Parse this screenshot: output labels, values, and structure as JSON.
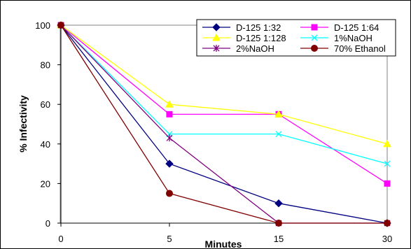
{
  "chart_data": {
    "type": "line",
    "title": "",
    "xlabel": "Minutes",
    "ylabel": "% Infectivity",
    "x": [
      0,
      5,
      15,
      30
    ],
    "x_ticks": [
      "0",
      "5",
      "15",
      "30"
    ],
    "y_ticks": [
      "0",
      "20",
      "40",
      "60",
      "80",
      "100"
    ],
    "ylim": [
      0,
      100
    ],
    "grid": false,
    "legend_position": "top-right",
    "series": [
      {
        "name": "D-125 1:32",
        "color": "#000080",
        "marker": "diamond",
        "values": [
          100,
          30,
          10,
          0
        ]
      },
      {
        "name": "D-125 1:64",
        "color": "#FF00FF",
        "marker": "square",
        "values": [
          100,
          55,
          55,
          20
        ]
      },
      {
        "name": "D-125 1:128",
        "color": "#FFFF00",
        "marker": "triangle",
        "values": [
          100,
          60,
          55,
          40
        ]
      },
      {
        "name": "1%NaOH",
        "color": "#00FFFF",
        "marker": "x",
        "values": [
          100,
          45,
          45,
          30
        ]
      },
      {
        "name": "2%NaOH",
        "color": "#800080",
        "marker": "star",
        "values": [
          100,
          43,
          0,
          0
        ]
      },
      {
        "name": "70% Ethanol",
        "color": "#800000",
        "marker": "circle",
        "values": [
          100,
          15,
          0,
          0
        ]
      }
    ]
  }
}
